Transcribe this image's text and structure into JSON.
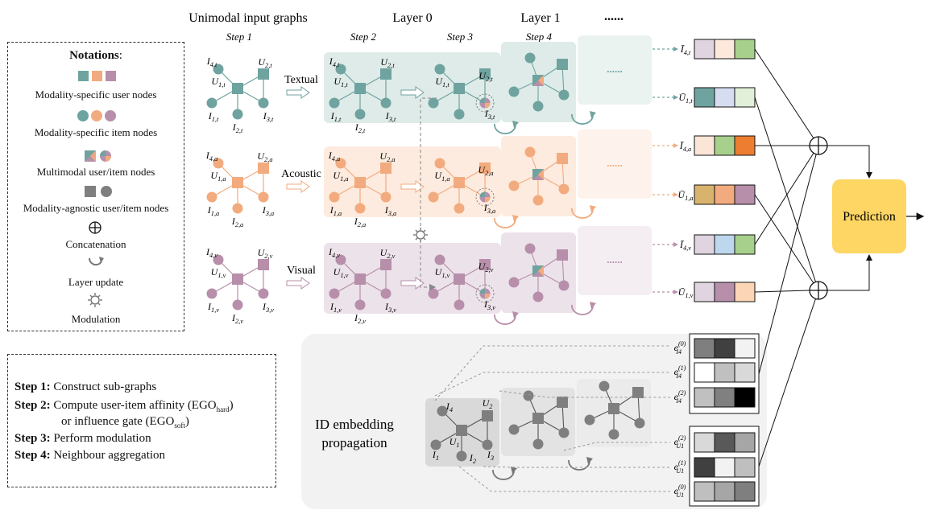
{
  "header": {
    "unimodal_title": "Unimodal input graphs",
    "layer0_title": "Layer 0",
    "layer1_title": "Layer 1",
    "more": "......",
    "step1": "Step 1",
    "step2": "Step 2",
    "step3": "Step 3",
    "step4": "Step 4"
  },
  "notations": {
    "title": "Notations",
    "colon": ":",
    "items": [
      "Modality-specific user nodes",
      "Modality-specific item nodes",
      "Multimodal user/item nodes",
      "Modality-agnostic user/item nodes",
      "Concatenation",
      "Layer update",
      "Modulation"
    ]
  },
  "steps": [
    {
      "label": "Step 1:",
      "text": "Construct sub-graphs"
    },
    {
      "label": "Step 2:",
      "text": "Compute user-item affinity (EGO",
      "sub": "hard",
      "text2": ")"
    },
    {
      "label": "",
      "text": "or influence gate (EGO",
      "sub": "soft",
      "text2": ")"
    },
    {
      "label": "Step 3:",
      "text": "Perform modulation"
    },
    {
      "label": "Step 4:",
      "text": "Neighbour aggregation"
    }
  ],
  "modalities": [
    {
      "name": "Textual",
      "sub": "t",
      "color": "#6fa3a0",
      "bg": "#deebe8"
    },
    {
      "name": "Acoustic",
      "sub": "a",
      "color": "#f2ab7e",
      "bg": "#fdebdf"
    },
    {
      "name": "Visual",
      "sub": "v",
      "color": "#b78faa",
      "bg": "#ece2ea"
    }
  ],
  "id_block": {
    "line1": "ID embedding",
    "line2": "propagation",
    "nodes": {
      "i4": "I4",
      "u2": "U2",
      "u1": "U1",
      "i1": "I1",
      "i2": "I2",
      "i3": "I3"
    }
  },
  "prediction": {
    "label": "Prediction",
    "color": "#fdd663"
  },
  "output_labels": [
    "Ī4,t",
    "Ū1,t",
    "Ī4,a",
    "Ū1,a",
    "Ī4,v",
    "Ū1,v"
  ],
  "embedding_labels": [
    "e(0) I4",
    "e(1) I4",
    "e(2) I4",
    "e(2) U1",
    "e(1) U1",
    "e(0) U1"
  ],
  "colors": {
    "accent_text": "#6fa3a0",
    "accent_audio": "#f2ab7e",
    "accent_visual": "#b78faa",
    "agnostic": "#7f7f7f",
    "prediction": "#fdd663"
  },
  "vectors": {
    "t_item": [
      "#e0d4e0",
      "#fde8dc",
      "#a8d08d"
    ],
    "t_user": [
      "#6fa3a0",
      "#d7ddf1",
      "#e2efd9"
    ],
    "a_item": [
      "#fbe5d6",
      "#a8d08d",
      "#ed7d31"
    ],
    "a_user": [
      "#d7b36e",
      "#f2ab7e",
      "#b78faa"
    ],
    "v_item": [
      "#e0d4e0",
      "#bdd7ee",
      "#a8d08d"
    ],
    "v_user": [
      "#e0d4e0",
      "#b78faa",
      "#fbd5b5"
    ],
    "e0_i4": [
      "#7f7f7f",
      "#404040",
      "#f2f2f2"
    ],
    "e1_i4": [
      "#ffffff",
      "#c0c0c0",
      "#d9d9d9"
    ],
    "e2_i4": [
      "#c0c0c0",
      "#808080",
      "#000000"
    ],
    "e2_u1": [
      "#d9d9d9",
      "#595959",
      "#a6a6a6"
    ],
    "e1_u1": [
      "#404040",
      "#f2f2f2",
      "#bfbfbf"
    ],
    "e0_u1": [
      "#bfbfbf",
      "#a6a6a6",
      "#7f7f7f"
    ]
  }
}
